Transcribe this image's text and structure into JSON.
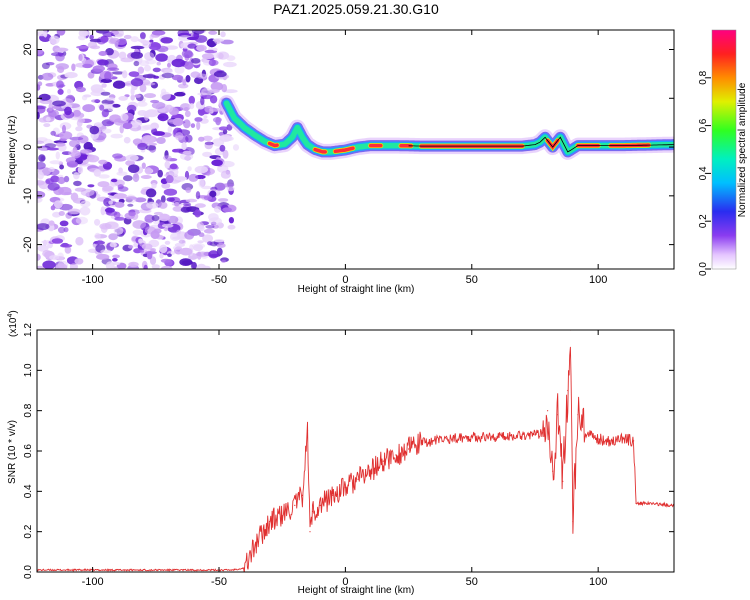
{
  "title": "PAZ1.2025.059.21.30.G10",
  "colors": {
    "snr_line": "#e03030",
    "ridge_line": "#000000",
    "scatter_purple": "#7a2ee0",
    "scatter_light": "#cfa8f5"
  },
  "chart_data": [
    {
      "type": "heatmap",
      "xlabel": "Height of straight line (km)",
      "ylabel": "Frequency (Hz)",
      "xlim": [
        -122,
        130
      ],
      "ylim": [
        -25,
        24
      ],
      "x_ticks": [
        -100,
        -50,
        0,
        50,
        100
      ],
      "y_ticks": [
        -20,
        -10,
        0,
        10,
        20
      ],
      "x_tick_labels": [
        "-100",
        "-50",
        "0",
        "50",
        "100"
      ],
      "y_tick_labels": [
        "-20",
        "-10",
        "0",
        "10",
        "20"
      ],
      "ridge": {
        "x": [
          -47,
          -44,
          -40,
          -36,
          -32,
          -28,
          -24,
          -21,
          -19,
          -17,
          -15,
          -12,
          -9,
          -6,
          -3,
          0,
          5,
          10,
          20,
          30,
          40,
          50,
          60,
          70,
          75,
          77,
          79,
          82,
          85,
          88,
          92,
          100,
          110,
          120,
          130
        ],
        "y": [
          9,
          6,
          4,
          2.5,
          1.2,
          0.3,
          0.6,
          2,
          4,
          2,
          0.5,
          -0.5,
          -1,
          -1,
          -0.8,
          -0.6,
          0,
          0.3,
          0.3,
          0.2,
          0.2,
          0.2,
          0.2,
          0.2,
          0.5,
          1,
          2,
          0,
          2,
          -1,
          0.3,
          0.3,
          0.3,
          0.4,
          0.5
        ]
      },
      "noise_x_range": [
        -122,
        -45
      ],
      "colorbar": {
        "label": "Normalized spectral amplitude",
        "range": [
          0,
          1
        ],
        "ticks": [
          0,
          0.2,
          0.4,
          0.6,
          0.8
        ],
        "tick_labels": [
          "0.0",
          "0.2",
          "0.4",
          "0.6",
          "0.8"
        ]
      }
    },
    {
      "type": "line",
      "xlabel": "Height of straight line (km)",
      "ylabel": "SNR (10 * v/v)",
      "scale_label": "(x10",
      "scale_exp": "4",
      "scale_close": ")",
      "xlim": [
        -122,
        130
      ],
      "ylim": [
        0,
        1.2
      ],
      "x_ticks": [
        -100,
        -50,
        0,
        50,
        100
      ],
      "y_ticks": [
        0,
        0.2,
        0.4,
        0.6,
        0.8,
        1.0,
        1.2
      ],
      "x_tick_labels": [
        "-100",
        "-50",
        "0",
        "50",
        "100"
      ],
      "y_tick_labels": [
        "0.0",
        "0.2",
        "0.4",
        "0.6",
        "0.8",
        "1.0",
        "1.2"
      ],
      "series": [
        {
          "x": [
            -122,
            -60,
            -45,
            -40,
            -35,
            -30,
            -25,
            -20,
            -17,
            -15,
            -14,
            -13,
            -10,
            -5,
            0,
            5,
            10,
            15,
            20,
            25,
            30,
            40,
            50,
            60,
            70,
            75,
            78,
            80,
            82,
            84,
            86,
            88,
            89,
            90,
            92,
            95,
            100,
            105,
            110,
            114,
            115,
            116,
            120,
            130
          ],
          "y": [
            0.01,
            0.01,
            0.01,
            0.02,
            0.15,
            0.25,
            0.28,
            0.33,
            0.38,
            0.7,
            0.2,
            0.3,
            0.33,
            0.38,
            0.42,
            0.46,
            0.5,
            0.55,
            0.58,
            0.61,
            0.64,
            0.66,
            0.67,
            0.67,
            0.68,
            0.68,
            0.69,
            0.8,
            0.5,
            0.78,
            0.45,
            0.9,
            1.2,
            0.25,
            0.78,
            0.68,
            0.66,
            0.65,
            0.66,
            0.65,
            0.34,
            0.34,
            0.34,
            0.33
          ]
        }
      ]
    }
  ]
}
